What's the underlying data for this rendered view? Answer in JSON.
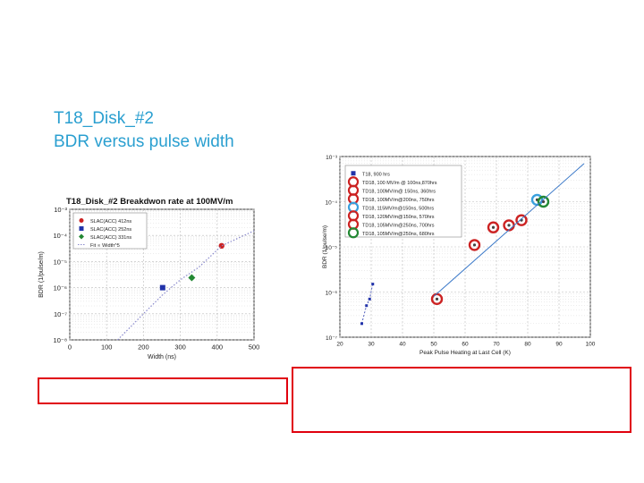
{
  "slide": {
    "title_line1": "T18_Disk_#2",
    "title_line2": "BDR versus pulse width"
  },
  "chart_data": [
    {
      "type": "scatter",
      "title": "T18_Disk_#2 Breakdwon rate at 100MV/m",
      "xlabel": "Width (ns)",
      "ylabel": "BDR (1/pulse/m)",
      "xlim": [
        0,
        500
      ],
      "ylim": [
        1e-08,
        0.001
      ],
      "yscale": "log",
      "x_ticks": [
        "0",
        "100",
        "200",
        "300",
        "400",
        "500"
      ],
      "y_ticks": [
        "10⁻³",
        "10⁻⁴",
        "10⁻⁵",
        "10⁻⁶",
        "10⁻⁷",
        "10⁻⁸"
      ],
      "grid": true,
      "legend_position": "top-left",
      "series": [
        {
          "name": "SLAC(ACC) 412ns",
          "color": "#cc2222",
          "marker": "circle",
          "points": [
            {
              "x": 412,
              "y": 4e-05
            }
          ]
        },
        {
          "name": "SLAC(ACC) 252ns",
          "color": "#2233aa",
          "marker": "square",
          "points": [
            {
              "x": 252,
              "y": 1e-06
            }
          ]
        },
        {
          "name": "SLAC(ACC) 331ns",
          "color": "#228833",
          "marker": "diamond",
          "points": [
            {
              "x": 331,
              "y": 2.4e-06
            }
          ]
        },
        {
          "name": "Fit ∝ Width^5",
          "color": "#8888cc",
          "marker": "dotted-line",
          "points": [
            {
              "x": 130,
              "y": 1e-08
            },
            {
              "x": 200,
              "y": 1e-07
            },
            {
              "x": 250,
              "y": 5e-07
            },
            {
              "x": 300,
              "y": 2e-06
            },
            {
              "x": 350,
              "y": 6e-06
            },
            {
              "x": 412,
              "y": 4e-05
            },
            {
              "x": 500,
              "y": 0.00015
            }
          ]
        }
      ]
    },
    {
      "type": "scatter",
      "title": "",
      "xlabel": "Peak Pulse Heating at Last Cell (K)",
      "ylabel": "BDR (1/pulse/m)",
      "xlim": [
        20,
        100
      ],
      "ylim": [
        1e-07,
        0.001
      ],
      "yscale": "log",
      "x_ticks": [
        "20",
        "30",
        "40",
        "50",
        "60",
        "70",
        "80",
        "90",
        "100"
      ],
      "y_ticks": [
        "10⁻³",
        "10⁻⁴",
        "10⁻⁵",
        "10⁻⁶",
        "10⁻⁷"
      ],
      "grid": true,
      "legend_position": "top-left",
      "series": [
        {
          "name": "T18, 900 hrs",
          "color": "#2233aa",
          "marker": "square",
          "points": [
            {
              "x": 27,
              "y": 2e-07
            },
            {
              "x": 28.5,
              "y": 5e-07
            },
            {
              "x": 29.5,
              "y": 7e-07
            },
            {
              "x": 30.5,
              "y": 1.5e-06
            }
          ]
        },
        {
          "name": "TD18, 100 MV/m @ 100ns,870hrs",
          "color": "#cc2222",
          "marker": "circle-open",
          "points": [
            {
              "x": 51,
              "y": 7e-07
            }
          ]
        },
        {
          "name": "TD18, 100MV/m@ 150ns, 360hrs",
          "color": "#cc2222",
          "marker": "circle-open",
          "points": [
            {
              "x": 63,
              "y": 1.1e-05
            }
          ]
        },
        {
          "name": "TD18, 100MV/m@200ns, 750hrs",
          "color": "#cc2222",
          "marker": "circle-open",
          "points": [
            {
              "x": 74,
              "y": 3e-05
            }
          ]
        },
        {
          "name": "TD18, 115MV/m@150ns, 500hrs",
          "color": "#3aa0dd",
          "marker": "circle-open",
          "points": [
            {
              "x": 83,
              "y": 0.00011
            }
          ]
        },
        {
          "name": "TD18, 120MV/m@150ns, 570hrs",
          "color": "#cc2222",
          "marker": "circle-open",
          "points": [
            {
              "x": 78,
              "y": 3.9e-05
            }
          ]
        },
        {
          "name": "TD18, 105MV/m@250ns, 700hrs",
          "color": "#cc2222",
          "marker": "circle-open",
          "points": [
            {
              "x": 69,
              "y": 2.7e-05
            }
          ]
        },
        {
          "name": "TD18, 105MV/m@250ns, 680hrs",
          "color": "#228833",
          "marker": "circle-open",
          "points": [
            {
              "x": 85,
              "y": 0.0001
            }
          ]
        },
        {
          "name": "fit",
          "color": "#3a78c8",
          "marker": "line",
          "points": [
            {
              "x": 50,
              "y": 8e-07
            },
            {
              "x": 98,
              "y": 0.0007
            }
          ]
        }
      ]
    }
  ]
}
